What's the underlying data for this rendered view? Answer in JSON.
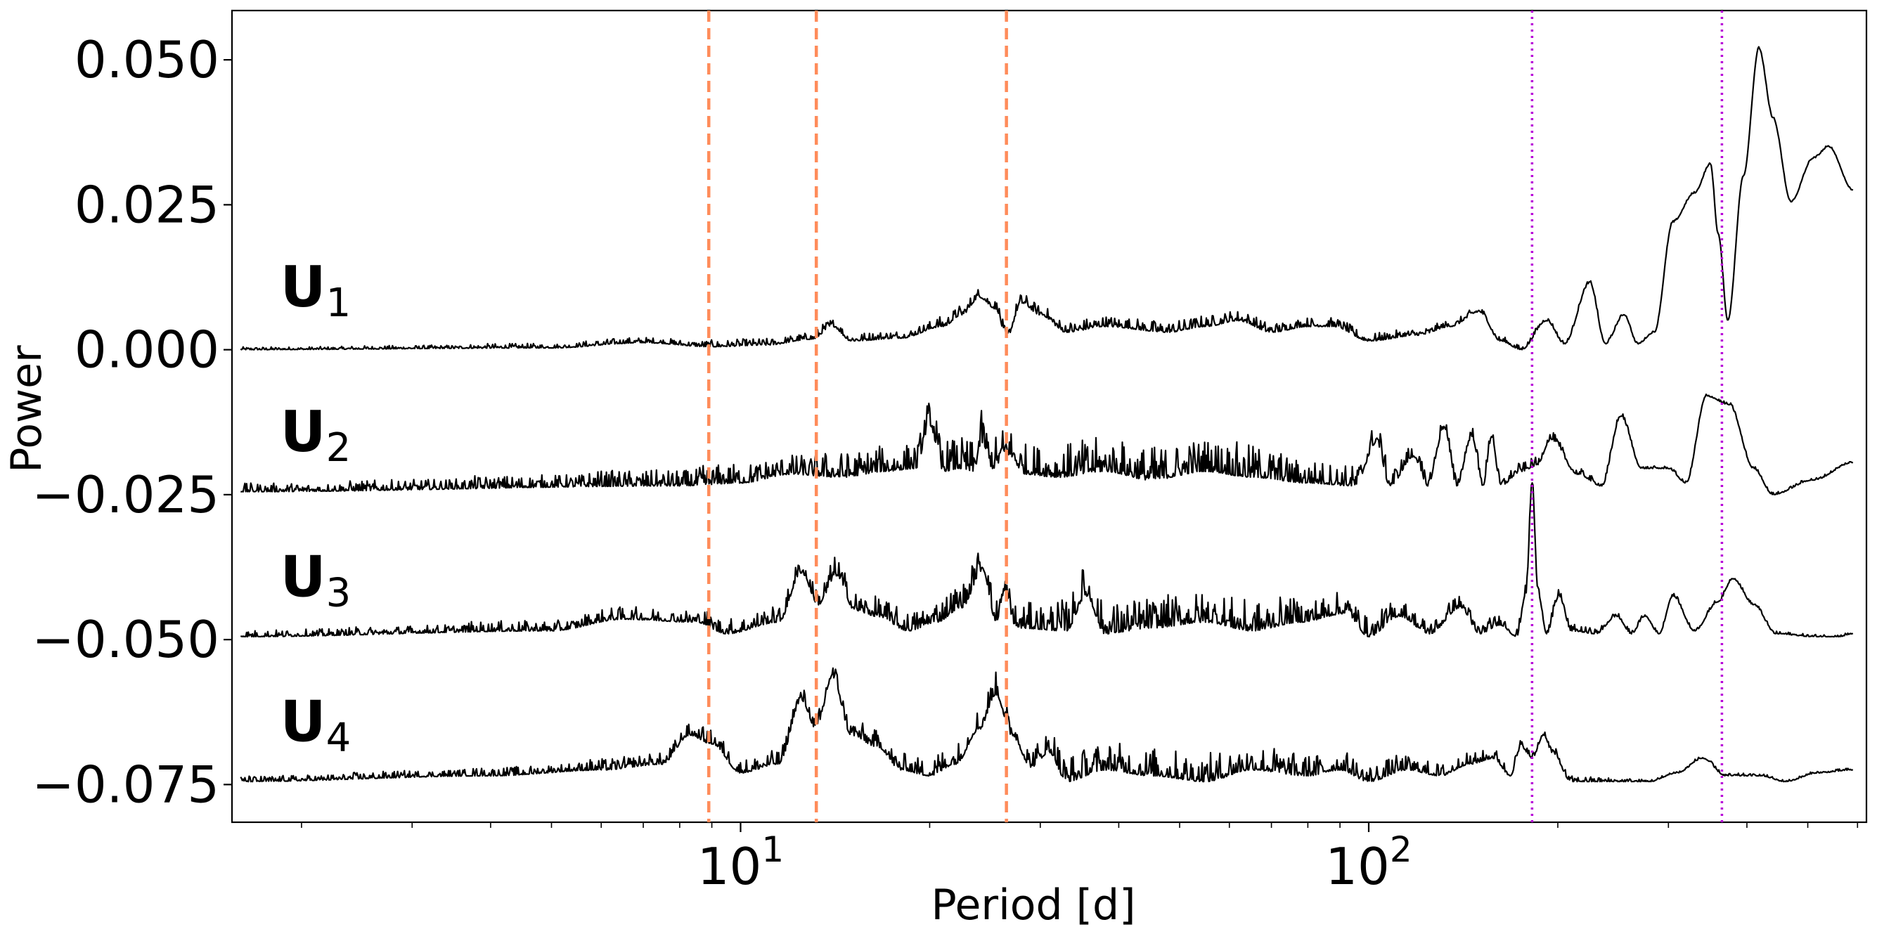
{
  "chart_data": {
    "type": "line",
    "title": "",
    "xlabel": "Period [d]",
    "ylabel": "Power",
    "xscale": "log",
    "xlim": [
      1.55,
      620
    ],
    "ylim": [
      -0.0815,
      0.0585
    ],
    "xticks": [
      {
        "value": 10,
        "base": "10",
        "exp": "1"
      },
      {
        "value": 100,
        "base": "10",
        "exp": "2"
      }
    ],
    "yticks": [
      {
        "value": 0.05,
        "label": "0.050"
      },
      {
        "value": 0.025,
        "label": "0.025"
      },
      {
        "value": 0.0,
        "label": "0.000"
      },
      {
        "value": -0.025,
        "label": "−0.025"
      },
      {
        "value": -0.05,
        "label": "−0.050"
      },
      {
        "value": -0.075,
        "label": "−0.075"
      }
    ],
    "grid": false,
    "legend": "none",
    "vlines": [
      {
        "x": 8.9,
        "style": "dashed",
        "color": "#ff8c5a"
      },
      {
        "x": 13.2,
        "style": "dashed",
        "color": "#ff8c5a"
      },
      {
        "x": 26.5,
        "style": "dashed",
        "color": "#ff8c5a"
      },
      {
        "x": 182,
        "style": "dotted",
        "color": "#b800d8"
      },
      {
        "x": 365,
        "style": "dotted",
        "color": "#b800d8"
      }
    ],
    "series": [
      {
        "name": "U",
        "sub": "1",
        "offset": 0.0,
        "label_x": 1.85,
        "label_y": 0.0075,
        "noise": [
          0.0005,
          0.0006,
          0.0008,
          0.001,
          0.0012,
          0.0015,
          0.0018,
          0.002,
          0.002,
          0.002,
          0.002,
          0.002,
          0.002,
          0.002
        ],
        "points": [
          [
            1.6,
            0.0
          ],
          [
            5.0,
            0.0003
          ],
          [
            7.0,
            0.0012
          ],
          [
            9.0,
            0.0005
          ],
          [
            11.0,
            0.0008
          ],
          [
            13.0,
            0.0018
          ],
          [
            14.0,
            0.004
          ],
          [
            15.0,
            0.0015
          ],
          [
            18.0,
            0.002
          ],
          [
            21.0,
            0.004
          ],
          [
            22.5,
            0.006
          ],
          [
            24.0,
            0.009
          ],
          [
            25.5,
            0.007
          ],
          [
            26.5,
            0.002
          ],
          [
            28.0,
            0.008
          ],
          [
            30.0,
            0.006
          ],
          [
            33.0,
            0.003
          ],
          [
            38.0,
            0.004
          ],
          [
            48.0,
            0.003
          ],
          [
            55.0,
            0.004
          ],
          [
            62.0,
            0.005
          ],
          [
            70.0,
            0.003
          ],
          [
            80.0,
            0.004
          ],
          [
            88.0,
            0.004
          ],
          [
            100.0,
            0.0015
          ],
          [
            120.0,
            0.0025
          ],
          [
            135.0,
            0.004
          ],
          [
            150.0,
            0.0065
          ],
          [
            162.0,
            0.0015
          ],
          [
            175.0,
            0.0
          ],
          [
            192.0,
            0.005
          ],
          [
            205.0,
            0.001
          ],
          [
            225.0,
            0.0115
          ],
          [
            238.0,
            0.001
          ],
          [
            255.0,
            0.006
          ],
          [
            268.0,
            0.001
          ],
          [
            285.0,
            0.003
          ],
          [
            305.0,
            0.022
          ],
          [
            330.0,
            0.027
          ],
          [
            350.0,
            0.032
          ],
          [
            360.0,
            0.02
          ],
          [
            373.0,
            0.005
          ],
          [
            395.0,
            0.03
          ],
          [
            418.0,
            0.052
          ],
          [
            440.0,
            0.04
          ],
          [
            470.0,
            0.0255
          ],
          [
            510.0,
            0.033
          ],
          [
            540.0,
            0.035
          ],
          [
            590.0,
            0.0275
          ]
        ]
      },
      {
        "name": "U",
        "sub": "2",
        "offset": -0.025,
        "label_x": 1.85,
        "label_y": -0.0175,
        "noise": [
          0.0015,
          0.0018,
          0.0022,
          0.0028,
          0.0035,
          0.0045,
          0.0055,
          0.006,
          0.006,
          0.005,
          0.004,
          0.004,
          0.003,
          0.003
        ],
        "points": [
          [
            1.6,
            -0.0245
          ],
          [
            8.0,
            -0.0235
          ],
          [
            10.0,
            -0.023
          ],
          [
            12.0,
            -0.0215
          ],
          [
            14.5,
            -0.022
          ],
          [
            17.0,
            -0.021
          ],
          [
            19.0,
            -0.0205
          ],
          [
            20.0,
            -0.013
          ],
          [
            21.0,
            -0.021
          ],
          [
            22.3,
            -0.0205
          ],
          [
            23.5,
            -0.021
          ],
          [
            24.2,
            -0.016
          ],
          [
            25.2,
            -0.0205
          ],
          [
            26.5,
            -0.018
          ],
          [
            28.5,
            -0.0215
          ],
          [
            32.0,
            -0.022
          ],
          [
            38.0,
            -0.021
          ],
          [
            45.0,
            -0.0225
          ],
          [
            55.0,
            -0.021
          ],
          [
            65.0,
            -0.022
          ],
          [
            80.0,
            -0.023
          ],
          [
            95.0,
            -0.0235
          ],
          [
            103.0,
            -0.016
          ],
          [
            108.0,
            -0.0235
          ],
          [
            118.0,
            -0.0185
          ],
          [
            124.0,
            -0.0235
          ],
          [
            132.0,
            -0.0135
          ],
          [
            138.0,
            -0.0235
          ],
          [
            146.0,
            -0.015
          ],
          [
            152.0,
            -0.0235
          ],
          [
            157.0,
            -0.015
          ],
          [
            162.0,
            -0.0235
          ],
          [
            175.0,
            -0.021
          ],
          [
            185.0,
            -0.02
          ],
          [
            195.0,
            -0.0155
          ],
          [
            215.0,
            -0.0215
          ],
          [
            235.0,
            -0.0235
          ],
          [
            252.0,
            -0.0115
          ],
          [
            272.0,
            -0.0205
          ],
          [
            300.0,
            -0.0205
          ],
          [
            320.0,
            -0.023
          ],
          [
            345.0,
            -0.008
          ],
          [
            375.0,
            -0.0095
          ],
          [
            410.0,
            -0.0205
          ],
          [
            440.0,
            -0.025
          ],
          [
            510.0,
            -0.0225
          ],
          [
            590.0,
            -0.0195
          ]
        ]
      },
      {
        "name": "U",
        "sub": "3",
        "offset": -0.05,
        "label_x": 1.85,
        "label_y": -0.0425,
        "noise": [
          0.0012,
          0.0014,
          0.0018,
          0.0022,
          0.0028,
          0.0035,
          0.0045,
          0.0055,
          0.0055,
          0.005,
          0.0045,
          0.004,
          0.0035,
          0.003
        ],
        "points": [
          [
            1.6,
            -0.0495
          ],
          [
            5.0,
            -0.0485
          ],
          [
            6.5,
            -0.0465
          ],
          [
            8.5,
            -0.047
          ],
          [
            9.5,
            -0.049
          ],
          [
            11.5,
            -0.047
          ],
          [
            12.5,
            -0.0385
          ],
          [
            13.3,
            -0.044
          ],
          [
            14.2,
            -0.039
          ],
          [
            15.2,
            -0.045
          ],
          [
            16.5,
            -0.046
          ],
          [
            18.5,
            -0.0485
          ],
          [
            20.5,
            -0.047
          ],
          [
            22.5,
            -0.0445
          ],
          [
            24.3,
            -0.038
          ],
          [
            25.5,
            -0.047
          ],
          [
            26.3,
            -0.0425
          ],
          [
            27.5,
            -0.048
          ],
          [
            33.0,
            -0.0485
          ],
          [
            35.5,
            -0.0425
          ],
          [
            38.0,
            -0.049
          ],
          [
            45.0,
            -0.048
          ],
          [
            55.0,
            -0.047
          ],
          [
            65.0,
            -0.0485
          ],
          [
            78.0,
            -0.047
          ],
          [
            92.0,
            -0.0455
          ],
          [
            100.0,
            -0.0495
          ],
          [
            112.0,
            -0.046
          ],
          [
            125.0,
            -0.049
          ],
          [
            140.0,
            -0.0445
          ],
          [
            150.0,
            -0.049
          ],
          [
            162.0,
            -0.0475
          ],
          [
            172.0,
            -0.0495
          ],
          [
            178.0,
            -0.042
          ],
          [
            182.0,
            -0.023
          ],
          [
            186.0,
            -0.042
          ],
          [
            192.0,
            -0.049
          ],
          [
            201.0,
            -0.0425
          ],
          [
            210.0,
            -0.0485
          ],
          [
            230.0,
            -0.049
          ],
          [
            248.0,
            -0.046
          ],
          [
            262.0,
            -0.049
          ],
          [
            275.0,
            -0.046
          ],
          [
            290.0,
            -0.049
          ],
          [
            305.0,
            -0.0425
          ],
          [
            330.0,
            -0.0485
          ],
          [
            360.0,
            -0.0435
          ],
          [
            380.0,
            -0.0395
          ],
          [
            410.0,
            -0.044
          ],
          [
            445.0,
            -0.049
          ],
          [
            510.0,
            -0.0495
          ],
          [
            560.0,
            -0.0495
          ],
          [
            590.0,
            -0.049
          ]
        ]
      },
      {
        "name": "U",
        "sub": "4",
        "offset": -0.075,
        "label_x": 1.85,
        "label_y": -0.0675,
        "noise": [
          0.001,
          0.0012,
          0.0015,
          0.002,
          0.0025,
          0.003,
          0.004,
          0.005,
          0.005,
          0.0045,
          0.004,
          0.0035,
          0.003,
          0.0025
        ],
        "points": [
          [
            1.6,
            -0.0745
          ],
          [
            4.0,
            -0.0735
          ],
          [
            6.0,
            -0.0725
          ],
          [
            7.5,
            -0.0715
          ],
          [
            8.3,
            -0.0665
          ],
          [
            9.0,
            -0.068
          ],
          [
            10.0,
            -0.073
          ],
          [
            11.5,
            -0.0715
          ],
          [
            12.5,
            -0.0605
          ],
          [
            13.2,
            -0.0655
          ],
          [
            14.0,
            -0.0565
          ],
          [
            15.0,
            -0.0665
          ],
          [
            16.5,
            -0.0685
          ],
          [
            18.0,
            -0.0725
          ],
          [
            20.0,
            -0.0735
          ],
          [
            22.0,
            -0.0715
          ],
          [
            24.0,
            -0.0655
          ],
          [
            25.5,
            -0.0595
          ],
          [
            27.0,
            -0.0665
          ],
          [
            29.0,
            -0.072
          ],
          [
            31.0,
            -0.0695
          ],
          [
            33.0,
            -0.0745
          ],
          [
            38.0,
            -0.0725
          ],
          [
            45.0,
            -0.0735
          ],
          [
            55.0,
            -0.0745
          ],
          [
            65.0,
            -0.0725
          ],
          [
            80.0,
            -0.0735
          ],
          [
            90.0,
            -0.0725
          ],
          [
            100.0,
            -0.0745
          ],
          [
            115.0,
            -0.0725
          ],
          [
            130.0,
            -0.0735
          ],
          [
            145.0,
            -0.0715
          ],
          [
            158.0,
            -0.0705
          ],
          [
            168.0,
            -0.0735
          ],
          [
            175.0,
            -0.0685
          ],
          [
            182.0,
            -0.0705
          ],
          [
            190.0,
            -0.0665
          ],
          [
            196.0,
            -0.0695
          ],
          [
            210.0,
            -0.0745
          ],
          [
            240.0,
            -0.0745
          ],
          [
            280.0,
            -0.0745
          ],
          [
            310.0,
            -0.073
          ],
          [
            340.0,
            -0.0705
          ],
          [
            370.0,
            -0.0735
          ],
          [
            420.0,
            -0.0735
          ],
          [
            460.0,
            -0.0745
          ],
          [
            520.0,
            -0.073
          ],
          [
            590.0,
            -0.0725
          ]
        ]
      }
    ]
  }
}
